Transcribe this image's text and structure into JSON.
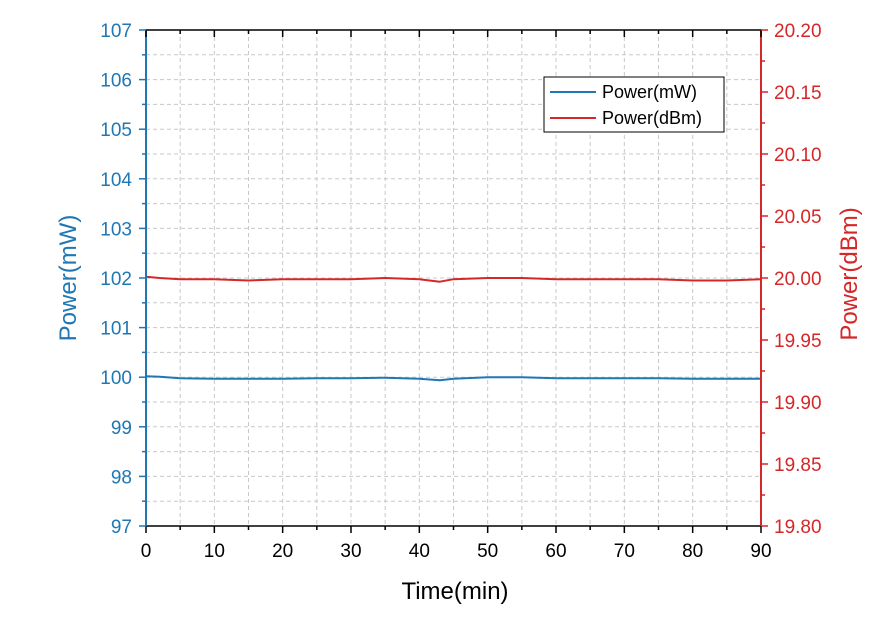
{
  "chart_data": {
    "type": "line",
    "title": "",
    "xlabel": "Time(min)",
    "ylabel_left": "Power(mW)",
    "ylabel_right": "Power(dBm)",
    "xlim": [
      0,
      90
    ],
    "ylim_left": [
      97,
      107
    ],
    "ylim_right": [
      19.8,
      20.2
    ],
    "x_ticks": [
      "0",
      "10",
      "20",
      "30",
      "40",
      "50",
      "60",
      "70",
      "80",
      "90"
    ],
    "y_left_ticks": [
      "97",
      "98",
      "99",
      "100",
      "101",
      "102",
      "103",
      "104",
      "105",
      "106",
      "107"
    ],
    "y_right_ticks": [
      "19.80",
      "19.85",
      "19.90",
      "19.95",
      "20.00",
      "20.05",
      "20.10",
      "20.15",
      "20.20"
    ],
    "grid": true,
    "legend_position": "top-right",
    "colors": {
      "left_axis": "#1f77b4",
      "right_axis": "#d62728",
      "series_mw": "#1f77b4",
      "series_dbm": "#d62728",
      "grid": "#c8c8c8"
    },
    "series": [
      {
        "name": "Power(mW)",
        "axis": "left",
        "x": [
          0,
          2,
          5,
          10,
          15,
          20,
          25,
          30,
          35,
          40,
          43,
          45,
          50,
          55,
          60,
          65,
          70,
          75,
          80,
          85,
          90
        ],
        "values": [
          100.02,
          100.01,
          99.98,
          99.97,
          99.97,
          99.97,
          99.98,
          99.98,
          99.99,
          99.97,
          99.94,
          99.97,
          100.0,
          100.0,
          99.98,
          99.98,
          99.98,
          99.98,
          99.97,
          99.97,
          99.97
        ]
      },
      {
        "name": "Power(dBm)",
        "axis": "right",
        "x": [
          0,
          2,
          5,
          10,
          15,
          20,
          25,
          30,
          35,
          40,
          43,
          45,
          50,
          55,
          60,
          65,
          70,
          75,
          80,
          85,
          90
        ],
        "values": [
          20.001,
          20.0,
          19.999,
          19.999,
          19.998,
          19.999,
          19.999,
          19.999,
          20.0,
          19.999,
          19.997,
          19.999,
          20.0,
          20.0,
          19.999,
          19.999,
          19.999,
          19.999,
          19.998,
          19.998,
          19.999
        ]
      }
    ]
  }
}
